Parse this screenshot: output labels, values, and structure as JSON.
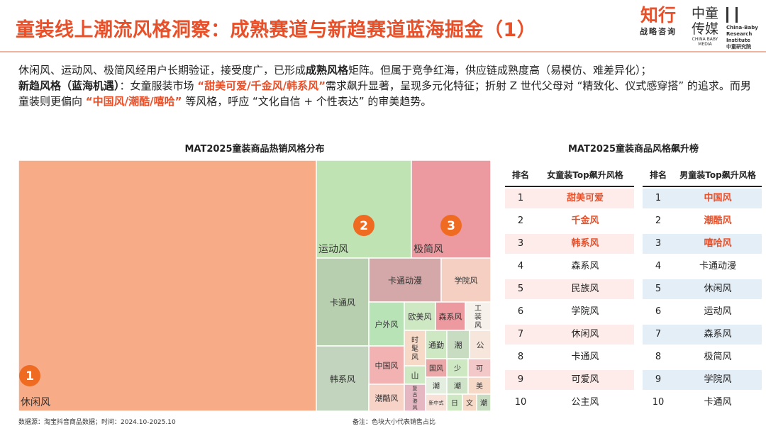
{
  "header": {
    "title": "童装线上潮流风格洞察：成熟赛道与新趋赛道蓝海掘金（1）",
    "logo_zhixing": "知行",
    "logo_zhixing_sub": "战略咨询",
    "logo_zhongtong_1": "中童",
    "logo_zhongtong_2": "传媒",
    "logo_zhongtong_en": "CHINA BABY MEDIA",
    "logo_cbri": "China-Baby Research Institute",
    "logo_cbri_cn": "中童研究院"
  },
  "intro": {
    "p1_a": "休闲风、运动风、极简风经用户长期验证，接受度广，已形成",
    "p1_b": "成熟风格",
    "p1_c": "矩阵。但属于竞争红海，供应链成熟度高（易模仿、难差异化）；",
    "p2_a": "新趋风格（蓝海机遇）",
    "p2_b": "：女童服装市场 ",
    "p2_c": "“甜美可爱/千金风/韩系风”",
    "p2_d": "需求飙升显著，呈现多元化特征；折射 Z 世代父母对 “精致化、仪式感穿搭” 的追求。而男童装则更偏向 ",
    "p2_e": "“中国风/潮酷/嘻哈”",
    "p2_f": " 等风格，呼应 “文化自信 + 个性表达” 的审美趋势。"
  },
  "treemap": {
    "title": "MAT2025童装商品热销风格分布",
    "cells": [
      {
        "label": "休闲风",
        "badge": "1",
        "color": "#f7ab87"
      },
      {
        "label": "运动风",
        "badge": "2",
        "color": "#bfe3b3"
      },
      {
        "label": "极简风",
        "badge": "3",
        "color": "#ec9aa0"
      },
      {
        "label": "卡通动漫",
        "color": "#d4a8a8"
      },
      {
        "label": "学院风",
        "color": "#f4cfc2"
      },
      {
        "label": "卡通风",
        "color": "#b7cfae"
      },
      {
        "label": "户外风",
        "color": "#b7e3b7"
      },
      {
        "label": "欧美风",
        "color": "#cfe8c4"
      },
      {
        "label": "森系风",
        "color": "#ec9aa0"
      },
      {
        "label": "工装风",
        "color": "#f7f1ec"
      },
      {
        "label": "中国风",
        "color": "#f2b2b2"
      },
      {
        "label": "时髦风",
        "color": "#f7d9c8"
      },
      {
        "label": "通勤",
        "color": "#cfe8c4"
      },
      {
        "label": "潮",
        "color": "#c8dcc2"
      },
      {
        "label": "公",
        "color": "#f7e6dc"
      },
      {
        "label": "国风",
        "color": "#eba8a8"
      },
      {
        "label": "少",
        "color": "#cfe8c4"
      },
      {
        "label": "可",
        "color": "#f3c8c8"
      },
      {
        "label": "山",
        "color": "#cfe8c4"
      },
      {
        "label": "潮",
        "color": "#e3ede0"
      },
      {
        "label": "潮",
        "color": "#cfe3c8"
      },
      {
        "label": "美",
        "color": "#f7d9c8"
      },
      {
        "label": "韩系风",
        "color": "#c2d4bd"
      },
      {
        "label": "潮酷风",
        "color": "#f7d3c7"
      },
      {
        "label": "复古港风",
        "color": "#e5b7c2"
      },
      {
        "label": "新中式",
        "color": "#f7e1d8"
      },
      {
        "label": "日",
        "color": "#cfe8c4"
      },
      {
        "label": "文",
        "color": "#f7d9c8"
      },
      {
        "label": "潮",
        "color": "#c8dcc2"
      }
    ]
  },
  "ranking": {
    "title": "MAT2025童装商品风格飙升榜",
    "female_rank_header": "排名",
    "female_style_header": "女童装Top飙升风格",
    "male_rank_header": "排名",
    "male_style_header": "男童装Top飙升风格",
    "rows": [
      {
        "rank": "1",
        "female": "甜美可爱",
        "male": "中国风"
      },
      {
        "rank": "2",
        "female": "千金风",
        "male": "潮酷风"
      },
      {
        "rank": "3",
        "female": "韩系风",
        "male": "嘻哈风"
      },
      {
        "rank": "4",
        "female": "森系风",
        "male": "卡通动漫"
      },
      {
        "rank": "5",
        "female": "民族风",
        "male": "休闲风"
      },
      {
        "rank": "6",
        "female": "学院风",
        "male": "运动风"
      },
      {
        "rank": "7",
        "female": "休闲风",
        "male": "森系风"
      },
      {
        "rank": "8",
        "female": "卡通风",
        "male": "极简风"
      },
      {
        "rank": "9",
        "female": "可爱风",
        "male": "学院风"
      },
      {
        "rank": "10",
        "female": "公主风",
        "male": "卡通风"
      }
    ]
  },
  "footer": {
    "source": "数据源：淘宝抖音商品数据；时间：2024.10-2025.10",
    "note": "备注：色块大小代表销售占比"
  },
  "colors": {
    "accent": "#e8502a",
    "female_row": "#fdecea",
    "male_row": "#e4eef7"
  }
}
